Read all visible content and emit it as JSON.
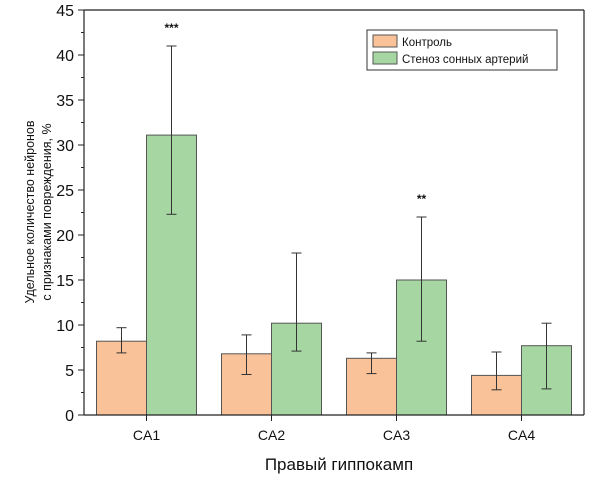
{
  "chart_data": {
    "type": "bar",
    "xlabel": "Правый гиппокамп",
    "ylabel_lines": [
      "Удельное количество нейронов",
      "с признаками повреждения, %"
    ],
    "ylim": [
      0,
      45
    ],
    "yticks": [
      0,
      5,
      10,
      15,
      20,
      25,
      30,
      35,
      40,
      45
    ],
    "categories": [
      "CA1",
      "CA2",
      "CA3",
      "CA4"
    ],
    "series": [
      {
        "name": "Контроль",
        "color": "#f9c298",
        "values": [
          8.2,
          6.8,
          6.3,
          4.4
        ],
        "err_low": [
          6.9,
          4.5,
          4.6,
          2.8
        ],
        "err_high": [
          9.7,
          8.9,
          6.9,
          7.0
        ]
      },
      {
        "name": "Стеноз сонных артерий",
        "color": "#a6d7a2",
        "values": [
          31.1,
          10.2,
          15.0,
          7.7
        ],
        "err_low": [
          22.3,
          7.1,
          8.2,
          2.9
        ],
        "err_high": [
          41.0,
          18.0,
          22.0,
          10.2
        ]
      }
    ],
    "annotations": [
      {
        "series": 1,
        "category": 0,
        "text": "***"
      },
      {
        "series": 1,
        "category": 2,
        "text": "**"
      }
    ],
    "legend_position": "top-right",
    "grid": false
  }
}
